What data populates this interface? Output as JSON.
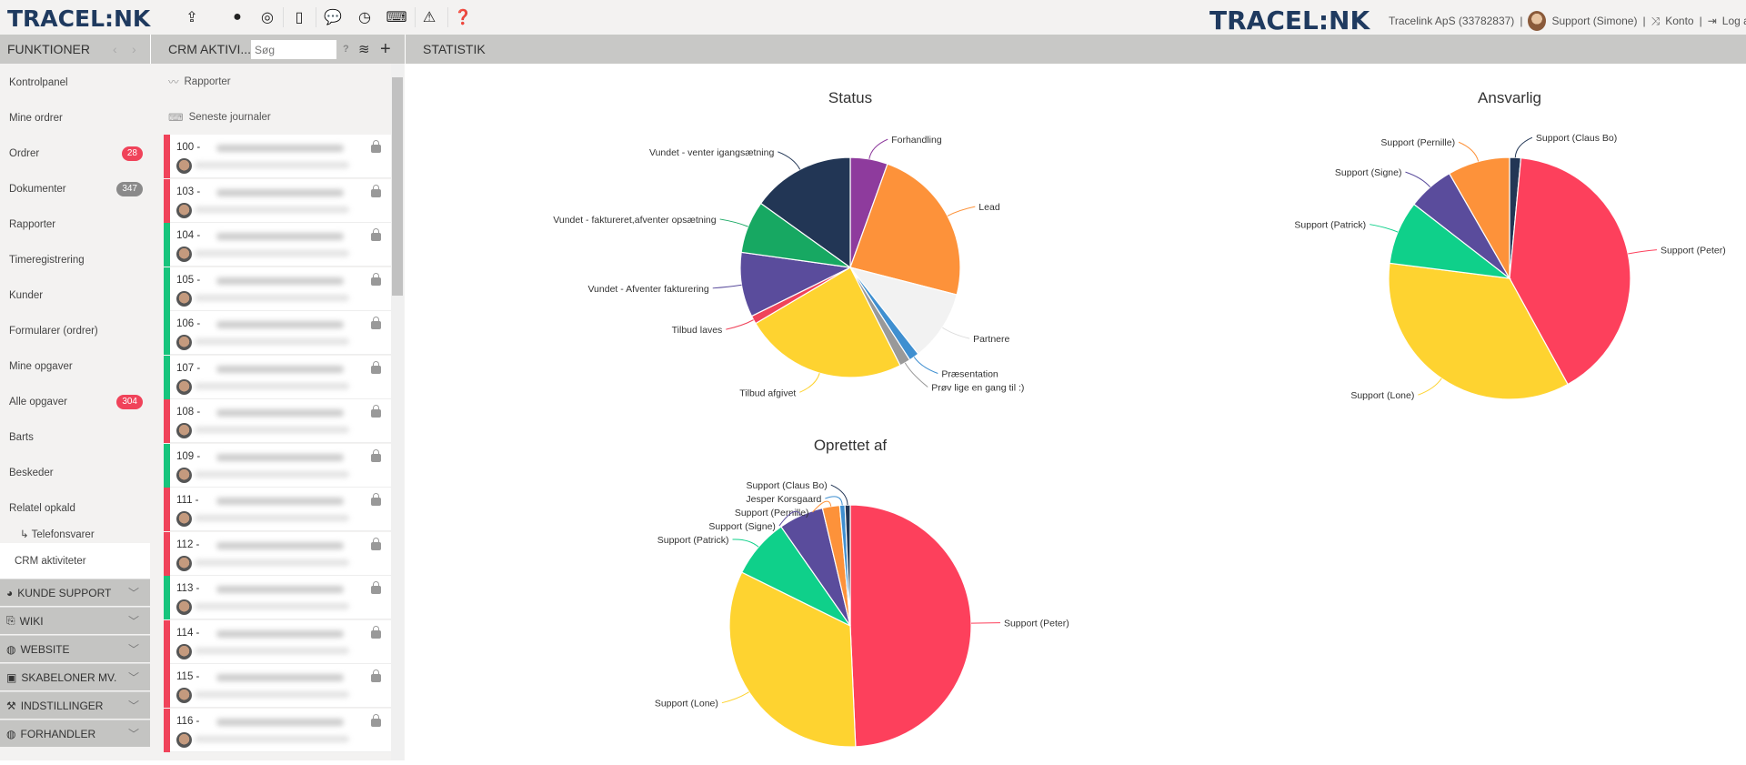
{
  "brand": {
    "logo": "TRACEL:NK"
  },
  "toolbar": {
    "icons": [
      "upload-icon",
      "drupal-icon",
      "lifebuoy-icon",
      "mobile-icon",
      "chat-icon",
      "clock-icon",
      "keyboard-icon",
      "warning-icon",
      "help-icon"
    ]
  },
  "user": {
    "company": "Tracelink ApS (33782837)",
    "name": "Support (Simone)",
    "account": "Konto",
    "logout": "Log af"
  },
  "sidebar": {
    "title": "FUNKTIONER",
    "items": [
      {
        "label": "Kontrolpanel"
      },
      {
        "label": "Mine ordrer"
      },
      {
        "label": "Ordrer",
        "badge": "28",
        "badge_color": "#f0435a"
      },
      {
        "label": "Dokumenter",
        "badge": "347",
        "badge_color": "#8a8a8a"
      },
      {
        "label": "Rapporter"
      },
      {
        "label": "Timeregistrering"
      },
      {
        "label": "Kunder"
      },
      {
        "label": "Formularer (ordrer)"
      },
      {
        "label": "Mine opgaver"
      },
      {
        "label": "Alle opgaver",
        "badge": "304",
        "badge_color": "#f0435a"
      },
      {
        "label": "Barts"
      },
      {
        "label": "Beskeder"
      },
      {
        "label": "Relatel opkald"
      }
    ],
    "subitem": "↳ Telefonsvarer",
    "active": "CRM aktiviteter",
    "sections": [
      "KUNDE SUPPORT",
      "WIKI",
      "WEBSITE",
      "SKABELONER MV.",
      "INDSTILLINGER",
      "FORHANDLER"
    ]
  },
  "crm": {
    "title": "CRM AKTIVI...",
    "search_placeholder": "Søg",
    "help": "?",
    "reports": "Rapporter",
    "journals": "Seneste journaler",
    "rows": [
      {
        "num": "100 -",
        "status": "#f0435a"
      },
      {
        "num": "103 -",
        "status": "#f0435a"
      },
      {
        "num": "104 -",
        "status": "#17c47c"
      },
      {
        "num": "105 -",
        "status": "#17c47c"
      },
      {
        "num": "106 -",
        "status": "#17c47c"
      },
      {
        "num": "107 -",
        "status": "#17c47c"
      },
      {
        "num": "108 -",
        "status": "#f0435a"
      },
      {
        "num": "109 -",
        "status": "#17c47c"
      },
      {
        "num": "111 -",
        "status": "#f0435a"
      },
      {
        "num": "112 -",
        "status": "#f0435a"
      },
      {
        "num": "113 -",
        "status": "#17c47c"
      },
      {
        "num": "114 -",
        "status": "#f0435a"
      },
      {
        "num": "115 -",
        "status": "#f0435a"
      },
      {
        "num": "116 -",
        "status": "#f0435a"
      }
    ]
  },
  "main": {
    "title": "STATISTIK"
  },
  "chart_data": [
    {
      "type": "pie",
      "title": "Status",
      "slices": [
        {
          "label": "Forhandling",
          "value": 5.5,
          "color": "#8e3b9d"
        },
        {
          "label": "Lead",
          "value": 23.5,
          "color": "#fd923a"
        },
        {
          "label": "Partnere",
          "value": 10.4,
          "color": "#f2f2f2"
        },
        {
          "label": "Præsentation",
          "value": 1.5,
          "color": "#3f8fd0"
        },
        {
          "label": "Prøv lige en gang til :)",
          "value": 1.6,
          "color": "#999999"
        },
        {
          "label": "Tilbud afgivet",
          "value": 24,
          "color": "#fed330"
        },
        {
          "label": "Tilbud laves",
          "value": 1.2,
          "color": "#f0435a"
        },
        {
          "label": "Vundet - Afventer fakturering",
          "value": 9.5,
          "color": "#5a4c9c"
        },
        {
          "label": "Vundet - faktureret,afventer opsætning",
          "value": 7.7,
          "color": "#17a862"
        },
        {
          "label": "Vundet - venter igangsætning",
          "value": 15.1,
          "color": "#223655"
        }
      ]
    },
    {
      "type": "pie",
      "title": "Ansvarlig",
      "slices": [
        {
          "label": "Support (Claus Bo)",
          "value": 1.5,
          "color": "#223655"
        },
        {
          "label": "Support (Peter)",
          "value": 40.5,
          "color": "#fd405c"
        },
        {
          "label": "Support (Lone)",
          "value": 35,
          "color": "#fed330"
        },
        {
          "label": "Support (Patrick)",
          "value": 8.5,
          "color": "#0fd08a"
        },
        {
          "label": "Support (Signe)",
          "value": 6.2,
          "color": "#5a4c9c"
        },
        {
          "label": "Support (Pernille)",
          "value": 8.3,
          "color": "#fd923a"
        }
      ]
    },
    {
      "type": "pie",
      "title": "Oprettet af",
      "slices": [
        {
          "label": "Support (Peter)",
          "value": 49.3,
          "color": "#fd405c"
        },
        {
          "label": "Support (Lone)",
          "value": 33,
          "color": "#fed330"
        },
        {
          "label": "Support (Patrick)",
          "value": 8,
          "color": "#0fd08a"
        },
        {
          "label": "Support (Signe)",
          "value": 6,
          "color": "#5a4c9c"
        },
        {
          "label": "Support (Pernille)",
          "value": 2.3,
          "color": "#fd923a"
        },
        {
          "label": "Jesper Korsgaard",
          "value": 0.7,
          "color": "#3f8fd0"
        },
        {
          "label": "Support (Claus Bo)",
          "value": 0.7,
          "color": "#223655"
        }
      ]
    }
  ]
}
